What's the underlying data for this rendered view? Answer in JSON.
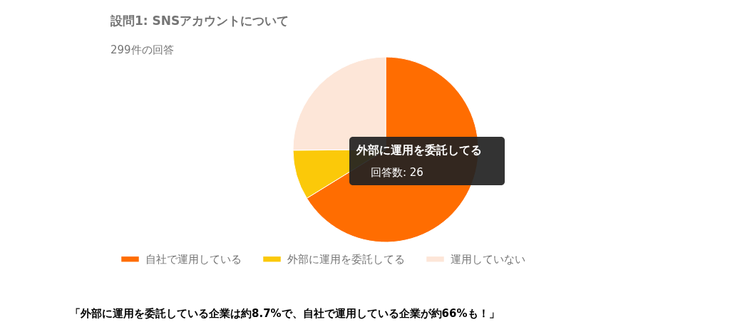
{
  "chart_data": {
    "type": "pie",
    "title": "設問1: SNSアカウントについて",
    "subtitle": "299件の回答",
    "categories": [
      "自社で運用している",
      "外部に運用を委託してる",
      "運用していない"
    ],
    "values": [
      66.2,
      8.7,
      25.1
    ],
    "colors": [
      "#ff6d01",
      "#fbc909",
      "#fde6d8"
    ],
    "legend": "bottom",
    "annotations": [
      "外部に運用を委託してる",
      "回答数: 26",
      "「外部に運用を委託している企業は約8.7%で、自社で運用している企業が約66%も！」"
    ]
  }
}
